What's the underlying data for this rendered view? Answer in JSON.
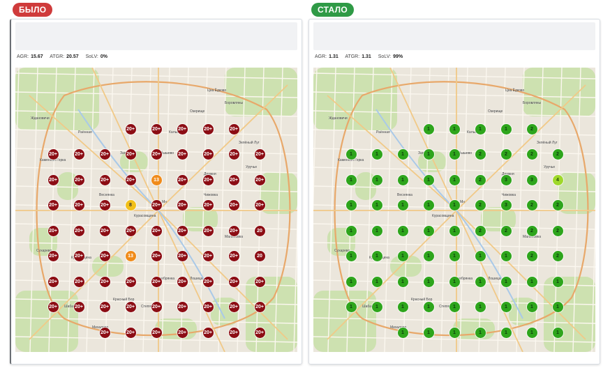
{
  "before": {
    "label": "БЫЛО",
    "stats": [
      {
        "label": "AGR:",
        "value": "15.67"
      },
      {
        "label": "ATGR:",
        "value": "20.57"
      },
      {
        "label": "SoLV:",
        "value": "0%"
      }
    ],
    "markers": [
      [
        "",
        "",
        "",
        "20+",
        "20+",
        "20+",
        "20+",
        "20+",
        ""
      ],
      [
        "20+",
        "20+",
        "20+",
        "20+",
        "20+",
        "20+",
        "20+",
        "20+",
        "20+"
      ],
      [
        "20+",
        "20+",
        "20+",
        "20+",
        "13",
        "20+",
        "20+",
        "20+",
        "20+"
      ],
      [
        "20+",
        "20+",
        "20+",
        "8",
        "20+",
        "20+",
        "20+",
        "20+",
        "20+"
      ],
      [
        "20+",
        "20+",
        "20+",
        "20+",
        "20+",
        "20+",
        "20+",
        "20+",
        "20"
      ],
      [
        "20+",
        "20+",
        "20+",
        "13",
        "20+",
        "20+",
        "20+",
        "20+",
        "20"
      ],
      [
        "20+",
        "20+",
        "20+",
        "20+",
        "20+",
        "20+",
        "20+",
        "20+",
        "20+"
      ],
      [
        "20+",
        "20+",
        "20+",
        "20+",
        "20+",
        "20+",
        "20+",
        "20+",
        "20+"
      ],
      [
        "",
        "",
        "20+",
        "20+",
        "20+",
        "20+",
        "20+",
        "20+",
        "20+"
      ]
    ]
  },
  "after": {
    "label": "СТАЛО",
    "stats": [
      {
        "label": "AGR:",
        "value": "1.31"
      },
      {
        "label": "ATGR:",
        "value": "1.31"
      },
      {
        "label": "SoLV:",
        "value": "99%"
      }
    ],
    "markers": [
      [
        "",
        "",
        "",
        "1",
        "1",
        "1",
        "1",
        "2",
        ""
      ],
      [
        "1",
        "1",
        "1",
        "1",
        "1",
        "2",
        "2",
        "2",
        "2"
      ],
      [
        "1",
        "1",
        "1",
        "1",
        "1",
        "2",
        "3",
        "3",
        "4"
      ],
      [
        "1",
        "1",
        "1",
        "1",
        "1",
        "2",
        "3",
        "2",
        "2"
      ],
      [
        "1",
        "1",
        "1",
        "1",
        "1",
        "2",
        "2",
        "2",
        "2"
      ],
      [
        "1",
        "1",
        "1",
        "1",
        "1",
        "1",
        "1",
        "2",
        "2"
      ],
      [
        "1",
        "1",
        "1",
        "1",
        "1",
        "1",
        "1",
        "1",
        "1"
      ],
      [
        "1",
        "1",
        "1",
        "1",
        "1",
        "1",
        "1",
        "1",
        "1"
      ],
      [
        "",
        "",
        "1",
        "1",
        "1",
        "1",
        "1",
        "1",
        "1"
      ]
    ]
  },
  "map_labels": [
    "Ждановичи",
    "Цна Ёдково",
    "Раённая",
    "Боровляны",
    "Каменная Горка",
    "Малиновка",
    "Сухарево",
    "Лошица",
    "Шабаны",
    "Серебрянка",
    "Уручье",
    "Зелёный Луг",
    "Дражня",
    "Чижовка",
    "Курасовщина",
    "Западный",
    "Веснянка",
    "Степянка",
    "Красный Бор",
    "Озерище",
    "Мн",
    "Михалово",
    "Кунцевщина",
    "Карбышево",
    "Кальвария"
  ],
  "colors": {
    "before_badge": "#cf3b3b",
    "after_badge": "#2f9a46",
    "marker_high": "#8c0d14",
    "marker_mid": "#f08b1a",
    "marker_low_warn": "#f2c01a",
    "marker_good": "#2ea51c",
    "marker_good_light": "#9fd82a"
  }
}
